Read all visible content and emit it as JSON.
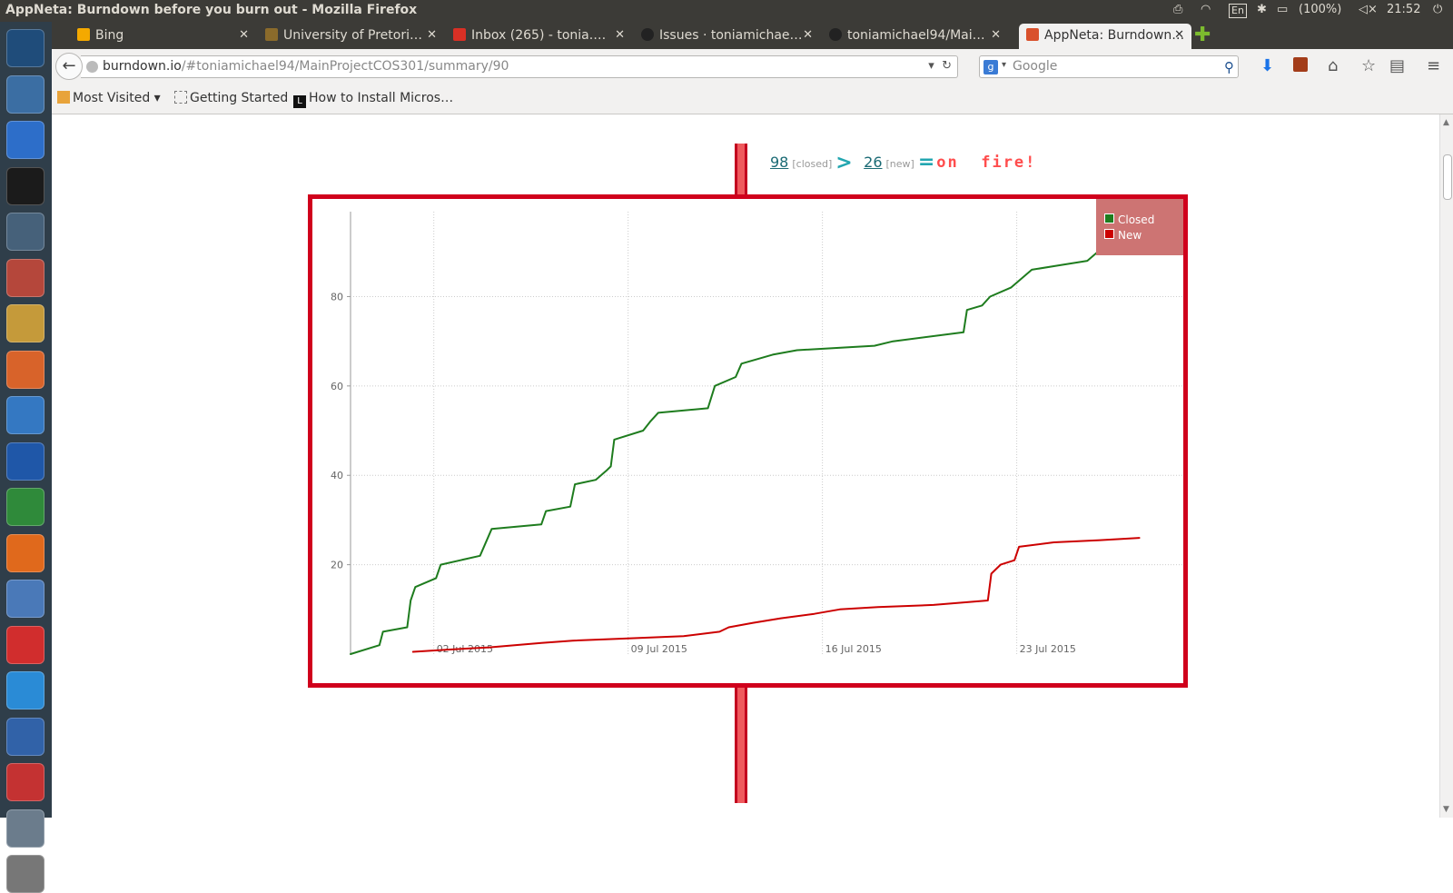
{
  "system_bar": {
    "window_title": "AppNeta: Burndown before you burn out - Mozilla Firefox",
    "language": "En",
    "battery": "(100%)",
    "clock": "21:52"
  },
  "launcher_icons": [
    "ubuntu-dash-icon",
    "system-monitor-icon",
    "chromium-icon",
    "terminal-icon",
    "text-editor-icon",
    "file-manager-icon",
    "archive-icon",
    "impress-icon",
    "writer-icon",
    "draw-icon",
    "calc-icon",
    "firefox-icon",
    "virtualbox-icon",
    "gmail-icon",
    "skype-icon",
    "kdrive-icon",
    "tube-icon",
    "workspace-switcher-icon",
    "trash-icon"
  ],
  "tabs": [
    {
      "label": "Bing",
      "favicon_color": "#f4a900",
      "active": false
    },
    {
      "label": "University of Pretori…",
      "favicon_color": "#8b6b2b",
      "active": false
    },
    {
      "label": "Inbox (265) - tonia.…",
      "favicon_color": "#d93025",
      "active": false
    },
    {
      "label": "Issues · toniamichae…",
      "favicon_color": "#222222",
      "active": false
    },
    {
      "label": "toniamichael94/Mai…",
      "favicon_color": "#222222",
      "active": false
    },
    {
      "label": "AppNeta: Burndown…",
      "favicon_color": "#d9512c",
      "active": true
    }
  ],
  "navigation": {
    "url_domain": "burndown.io",
    "url_rest": "/#toniamichael94/MainProjectCOS301/summary/90",
    "search_placeholder": "Google"
  },
  "bookmarks": [
    {
      "label": "Most Visited ▾",
      "icon": "folder-icon"
    },
    {
      "label": "Getting Started",
      "icon": "page-icon"
    },
    {
      "label": "How to Install Micros…",
      "icon": "bookmark-l-icon"
    }
  ],
  "summary": {
    "closed_count": "98",
    "closed_label": "[closed]",
    "new_count": "26",
    "new_label": "[new]",
    "status": "on  fire!"
  },
  "chart_data": {
    "type": "line",
    "x_type": "date",
    "xlim": [
      "2015-06-29",
      "2015-07-29"
    ],
    "ylim": [
      0,
      99
    ],
    "y_ticks": [
      20,
      40,
      60,
      80
    ],
    "x_ticks": [
      {
        "date": "2015-07-02",
        "label": "02 Jul 2015"
      },
      {
        "date": "2015-07-09",
        "label": "09 Jul 2015"
      },
      {
        "date": "2015-07-16",
        "label": "16 Jul 2015"
      },
      {
        "date": "2015-07-23",
        "label": "23 Jul 2015"
      }
    ],
    "grid": true,
    "legend_position": "top-right",
    "series": [
      {
        "name": "Closed",
        "color": "#1e7c1e",
        "points": [
          [
            "2015-06-29T00:00",
            0
          ],
          [
            "2015-06-30T01:00",
            2
          ],
          [
            "2015-06-30T04:00",
            5
          ],
          [
            "2015-07-01T01:00",
            6
          ],
          [
            "2015-07-01T04:00",
            12
          ],
          [
            "2015-07-01T08:00",
            15
          ],
          [
            "2015-07-02T02:00",
            17
          ],
          [
            "2015-07-02T06:00",
            20
          ],
          [
            "2015-07-03T16:00",
            22
          ],
          [
            "2015-07-04T02:00",
            28
          ],
          [
            "2015-07-05T21:00",
            29
          ],
          [
            "2015-07-06T01:00",
            32
          ],
          [
            "2015-07-06T22:00",
            33
          ],
          [
            "2015-07-07T02:00",
            38
          ],
          [
            "2015-07-07T20:00",
            39
          ],
          [
            "2015-07-08T05:00",
            41
          ],
          [
            "2015-07-08T09:00",
            42
          ],
          [
            "2015-07-08T12:00",
            48
          ],
          [
            "2015-07-09T13:00",
            50
          ],
          [
            "2015-07-09T19:00",
            52
          ],
          [
            "2015-07-10T02:00",
            54
          ],
          [
            "2015-07-11T21:00",
            55
          ],
          [
            "2015-07-12T03:00",
            60
          ],
          [
            "2015-07-12T21:00",
            62
          ],
          [
            "2015-07-13T02:00",
            65
          ],
          [
            "2015-07-14T05:00",
            67
          ],
          [
            "2015-07-15T02:00",
            68
          ],
          [
            "2015-07-17T21:00",
            69
          ],
          [
            "2015-07-18T13:00",
            70
          ],
          [
            "2015-07-21T02:00",
            72
          ],
          [
            "2015-07-21T05:00",
            77
          ],
          [
            "2015-07-21T18:00",
            78
          ],
          [
            "2015-07-22T01:00",
            80
          ],
          [
            "2015-07-22T19:00",
            82
          ],
          [
            "2015-07-23T04:00",
            84
          ],
          [
            "2015-07-23T13:00",
            86
          ],
          [
            "2015-07-24T13:00",
            87
          ],
          [
            "2015-07-25T13:00",
            88
          ],
          [
            "2015-07-25T22:00",
            90
          ],
          [
            "2015-07-26T23:00",
            92
          ],
          [
            "2015-07-27T06:00",
            93
          ],
          [
            "2015-07-27T09:00",
            98
          ]
        ]
      },
      {
        "name": "New",
        "color": "#cc0000",
        "points": [
          [
            "2015-07-01T06:00",
            0.5
          ],
          [
            "2015-07-02T12:00",
            1
          ],
          [
            "2015-07-04T00:00",
            1.5
          ],
          [
            "2015-07-05T21:00",
            2.5
          ],
          [
            "2015-07-07T00:00",
            3
          ],
          [
            "2015-07-09T00:00",
            3.5
          ],
          [
            "2015-07-11T00:00",
            4
          ],
          [
            "2015-07-12T07:00",
            5
          ],
          [
            "2015-07-12T15:00",
            6
          ],
          [
            "2015-07-13T12:00",
            7
          ],
          [
            "2015-07-14T12:00",
            8
          ],
          [
            "2015-07-15T17:00",
            9
          ],
          [
            "2015-07-16T15:00",
            10
          ],
          [
            "2015-07-18T00:00",
            10.5
          ],
          [
            "2015-07-20T00:00",
            11
          ],
          [
            "2015-07-21T23:00",
            12
          ],
          [
            "2015-07-22T02:00",
            18
          ],
          [
            "2015-07-22T10:00",
            20
          ],
          [
            "2015-07-22T22:00",
            21
          ],
          [
            "2015-07-23T02:00",
            24
          ],
          [
            "2015-07-24T08:00",
            25
          ],
          [
            "2015-07-26T00:00",
            25.5
          ],
          [
            "2015-07-27T10:00",
            26
          ]
        ]
      }
    ]
  }
}
